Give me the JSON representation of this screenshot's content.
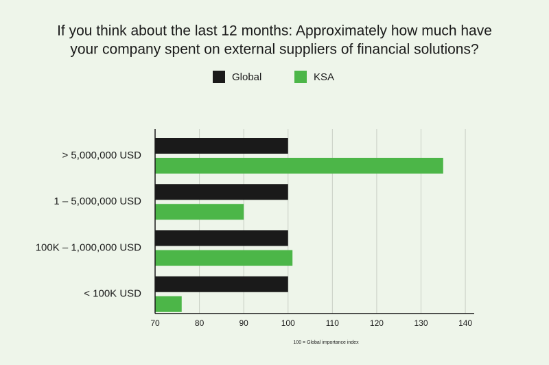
{
  "chart_data": {
    "type": "hbar",
    "title_lines": [
      "If you think about the last 12 months: Approximately how much have",
      "your company spent on external suppliers of financial solutions?"
    ],
    "categories": [
      "> 5,000,000 USD",
      "1 – 5,000,000 USD",
      "100K – 1,000,000 USD",
      "< 100K USD"
    ],
    "series": [
      {
        "name": "Global",
        "color": "#1a1a1a",
        "values": [
          100,
          100,
          100,
          100
        ]
      },
      {
        "name": "KSA",
        "color": "#4cb648",
        "values": [
          135,
          90,
          101,
          76
        ]
      }
    ],
    "xlim": [
      70,
      142
    ],
    "xticks": [
      70,
      80,
      90,
      100,
      110,
      120,
      130,
      140
    ],
    "grid": true,
    "note": "100 = Global importance index"
  }
}
